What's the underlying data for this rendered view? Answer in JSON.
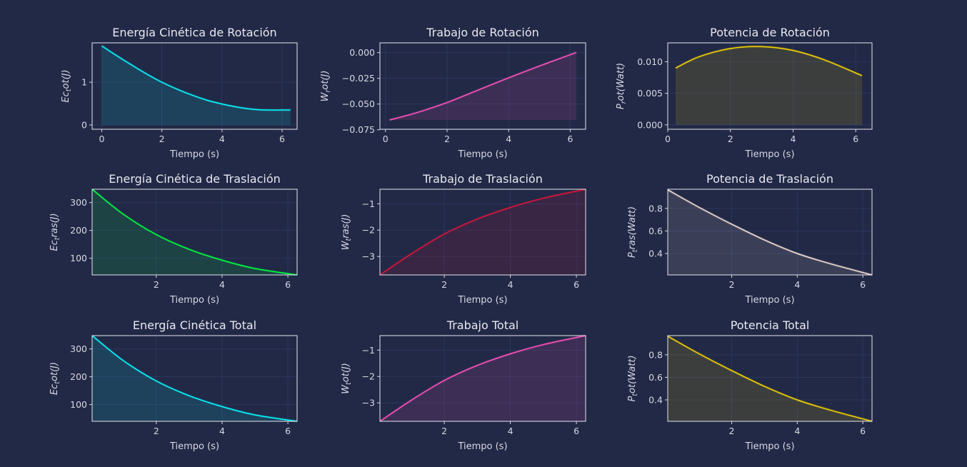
{
  "chart_data": [
    {
      "type": "area",
      "title": "Energía Cinética de Rotación",
      "xlabel": "Tiempo (s)",
      "ylabel_main": "Ec",
      "ylabel_sub": "t",
      "ylabel_rest": "ot(J)",
      "color": "#08f7fe",
      "xlim": [
        -0.32,
        6.5
      ],
      "ylim": [
        -0.1,
        1.92
      ],
      "xticks": [
        0,
        2,
        4,
        6
      ],
      "yticks": [
        0,
        1
      ],
      "xticklabels": [
        "0",
        "2",
        "4",
        "6"
      ],
      "yticklabels": [
        "0",
        "1"
      ],
      "x": [
        0,
        0.5,
        1,
        1.5,
        2,
        2.5,
        3,
        3.5,
        4,
        4.5,
        5,
        5.5,
        6,
        6.28
      ],
      "y": [
        1.85,
        1.62,
        1.4,
        1.19,
        1.0,
        0.84,
        0.7,
        0.58,
        0.49,
        0.42,
        0.37,
        0.35,
        0.35,
        0.35
      ],
      "fill_base": 0
    },
    {
      "type": "area",
      "title": "Trabajo de Rotación",
      "xlabel": "Tiempo (s)",
      "ylabel_main": "W",
      "ylabel_sub": "r",
      "ylabel_rest": "ot(J)",
      "color": "#fe53bb",
      "xlim": [
        -0.18,
        6.5
      ],
      "ylim": [
        -0.0745,
        0.0095
      ],
      "xticks": [
        0,
        2,
        4,
        6
      ],
      "yticks": [
        0.0,
        -0.025,
        -0.05,
        -0.075
      ],
      "xticklabels": [
        "0",
        "2",
        "4",
        "6"
      ],
      "yticklabels": [
        "0.000",
        "−0.025",
        "−0.050",
        "−0.075"
      ],
      "x": [
        0.13,
        1,
        2,
        3,
        4,
        5,
        6.2
      ],
      "y": [
        -0.0655,
        -0.0585,
        -0.0485,
        -0.0365,
        -0.0245,
        -0.013,
        0.0002
      ],
      "fill_base": -0.0655
    },
    {
      "type": "area",
      "title": "Potencia de Rotación",
      "xlabel": "Tiempo (s)",
      "ylabel_main": "P",
      "ylabel_sub": "r",
      "ylabel_rest": "ot(Watt)",
      "color": "#f5d300",
      "xlim": [
        0,
        6.52
      ],
      "ylim": [
        -0.0007,
        0.013
      ],
      "xticks": [
        0,
        2,
        4,
        6
      ],
      "yticks": [
        0.0,
        0.005,
        0.01
      ],
      "xticklabels": [
        "0",
        "2",
        "4",
        "6"
      ],
      "yticklabels": [
        "0.000",
        "0.005",
        "0.010"
      ],
      "x": [
        0.25,
        1,
        2,
        3,
        4,
        5,
        6.2
      ],
      "y": [
        0.009,
        0.0108,
        0.0121,
        0.0124,
        0.0118,
        0.0103,
        0.0078
      ],
      "fill_base": 0
    },
    {
      "type": "area",
      "title": "Energía Cinética de Traslación",
      "xlabel": "Tiempo (s)",
      "ylabel_main": "Ec",
      "ylabel_sub": "t",
      "ylabel_rest": "ras(J)",
      "color": "#00ff41",
      "xlim": [
        0.05,
        6.28
      ],
      "ylim": [
        40,
        348
      ],
      "xticks": [
        2,
        4,
        6
      ],
      "yticks": [
        100,
        200,
        300
      ],
      "xticklabels": [
        "2",
        "4",
        "6"
      ],
      "yticklabels": [
        "100",
        "200",
        "300"
      ],
      "x": [
        0.05,
        1,
        2,
        3,
        4,
        5,
        6.28
      ],
      "y": [
        348,
        258,
        185,
        132,
        93,
        63,
        40
      ],
      "fill_base": 40
    },
    {
      "type": "area",
      "title": "Trabajo de Traslación",
      "xlabel": "Tiempo (s)",
      "ylabel_main": "W",
      "ylabel_sub": "t",
      "ylabel_rest": "ras(J)",
      "color": "#dc143c",
      "xlim": [
        0.05,
        6.28
      ],
      "ylim": [
        -3.7,
        -0.45
      ],
      "xticks": [
        2,
        4,
        6
      ],
      "yticks": [
        -1,
        -2,
        -3
      ],
      "xticklabels": [
        "2",
        "4",
        "6"
      ],
      "yticklabels": [
        "−1",
        "−2",
        "−3"
      ],
      "x": [
        0.05,
        1,
        2,
        3,
        4,
        5,
        6.28
      ],
      "y": [
        -3.7,
        -2.9,
        -2.15,
        -1.58,
        -1.14,
        -0.79,
        -0.45
      ],
      "fill_base": -3.7
    },
    {
      "type": "area",
      "title": "Potencia de Traslación",
      "xlabel": "Tiempo (s)",
      "ylabel_main": "P",
      "ylabel_sub": "t",
      "ylabel_rest": "ras(Watt)",
      "color": "#f2ddd4",
      "xlim": [
        0.05,
        6.28
      ],
      "ylim": [
        0.21,
        0.97
      ],
      "xticks": [
        2,
        4,
        6
      ],
      "yticks": [
        0.4,
        0.6,
        0.8
      ],
      "xticklabels": [
        "2",
        "4",
        "6"
      ],
      "yticklabels": [
        "0.4",
        "0.6",
        "0.8"
      ],
      "x": [
        0.05,
        1,
        2,
        3,
        4,
        5,
        6.28
      ],
      "y": [
        0.965,
        0.81,
        0.66,
        0.52,
        0.4,
        0.31,
        0.21
      ],
      "fill_base": 0.21
    },
    {
      "type": "area",
      "title": "Energía Cinética Total",
      "xlabel": "Tiempo (s)",
      "ylabel_main": "Ec",
      "ylabel_sub": "t",
      "ylabel_rest": "ot(J)",
      "color": "#08f7fe",
      "xlim": [
        0.05,
        6.28
      ],
      "ylim": [
        40,
        348
      ],
      "xticks": [
        2,
        4,
        6
      ],
      "yticks": [
        100,
        200,
        300
      ],
      "xticklabels": [
        "2",
        "4",
        "6"
      ],
      "yticklabels": [
        "100",
        "200",
        "300"
      ],
      "x": [
        0.05,
        1,
        2,
        3,
        4,
        5,
        6.28
      ],
      "y": [
        348,
        258,
        185,
        132,
        93,
        63,
        40
      ],
      "fill_base": 40
    },
    {
      "type": "area",
      "title": "Trabajo Total",
      "xlabel": "Tiempo (s)",
      "ylabel_main": "W",
      "ylabel_sub": "t",
      "ylabel_rest": "ot(J)",
      "color": "#fe53bb",
      "xlim": [
        0.05,
        6.28
      ],
      "ylim": [
        -3.7,
        -0.45
      ],
      "xticks": [
        2,
        4,
        6
      ],
      "yticks": [
        -1,
        -2,
        -3
      ],
      "xticklabels": [
        "2",
        "4",
        "6"
      ],
      "yticklabels": [
        "−1",
        "−2",
        "−3"
      ],
      "x": [
        0.05,
        1,
        2,
        3,
        4,
        5,
        6.28
      ],
      "y": [
        -3.7,
        -2.9,
        -2.15,
        -1.58,
        -1.14,
        -0.79,
        -0.45
      ],
      "fill_base": -3.7
    },
    {
      "type": "area",
      "title": "Potencia Total",
      "xlabel": "Tiempo (s)",
      "ylabel_main": "P",
      "ylabel_sub": "t",
      "ylabel_rest": "ot(Watt)",
      "color": "#f5d300",
      "xlim": [
        0.05,
        6.28
      ],
      "ylim": [
        0.21,
        0.97
      ],
      "xticks": [
        2,
        4,
        6
      ],
      "yticks": [
        0.4,
        0.6,
        0.8
      ],
      "xticklabels": [
        "2",
        "4",
        "6"
      ],
      "yticklabels": [
        "0.4",
        "0.6",
        "0.8"
      ],
      "x": [
        0.05,
        1,
        2,
        3,
        4,
        5,
        6.28
      ],
      "y": [
        0.965,
        0.81,
        0.66,
        0.52,
        0.4,
        0.31,
        0.21
      ],
      "fill_base": 0.21
    }
  ]
}
